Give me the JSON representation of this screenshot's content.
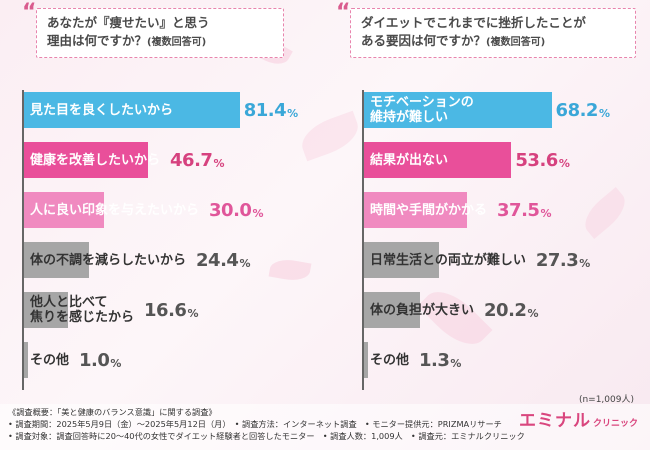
{
  "colors": {
    "rank1": "#4bb8e4",
    "rank2": "#e94f9a",
    "rank3": "#f08ac0",
    "other": "#a6a6a6",
    "rank1_text": "#3aa7d8",
    "rank2_text": "#d6427f",
    "rank3_text": "#e0569a",
    "other_text": "#555555"
  },
  "chart_data": [
    {
      "type": "bar",
      "orientation": "horizontal",
      "title": "あなたが『痩せたい』と思う理由は何ですか？(複数回答可)",
      "title_lines": [
        "あなたが『痩せたい』と思う",
        "理由は何ですか？"
      ],
      "title_suffix": "(複数回答可)",
      "categories": [
        "見た目を良くしたいから",
        "健康を改善したいから",
        "人に良い印象を与えたいから",
        "体の不調を減らしたいから",
        "他人と比べて焦りを感じたから",
        "その他"
      ],
      "category_lines": [
        [
          "見た目を良くしたいから"
        ],
        [
          "健康を改善したいから"
        ],
        [
          "人に良い印象を与えたいから"
        ],
        [
          "体の不調を減らしたいから"
        ],
        [
          "他人と比べて",
          "焦りを感じたから"
        ],
        [
          "その他"
        ]
      ],
      "values": [
        81.4,
        46.7,
        30.0,
        24.4,
        16.6,
        1.0
      ],
      "value_labels": [
        "81.4",
        "46.7",
        "30.0",
        "24.4",
        "16.6",
        "1.0"
      ],
      "unit": "%",
      "xlim": [
        0,
        100
      ]
    },
    {
      "type": "bar",
      "orientation": "horizontal",
      "title": "ダイエットでこれまでに挫折したことがある要因は何ですか？(複数回答可)",
      "title_lines": [
        "ダイエットでこれまでに挫折したことが",
        "ある要因は何ですか？"
      ],
      "title_suffix": "(複数回答可)",
      "categories": [
        "モチベーションの維持が難しい",
        "結果が出ない",
        "時間や手間がかかる",
        "日常生活との両立が難しい",
        "体の負担が大きい",
        "その他"
      ],
      "category_lines": [
        [
          "モチベーションの",
          "維持が難しい"
        ],
        [
          "結果が出ない"
        ],
        [
          "時間や手間がかかる"
        ],
        [
          "日常生活との両立が難しい"
        ],
        [
          "体の負担が大きい"
        ],
        [
          "その他"
        ]
      ],
      "values": [
        68.2,
        53.6,
        37.5,
        27.3,
        20.2,
        1.3
      ],
      "value_labels": [
        "68.2",
        "53.6",
        "37.5",
        "27.3",
        "20.2",
        "1.3"
      ],
      "unit": "%",
      "xlim": [
        0,
        100
      ],
      "note": "(n=1,009人)"
    }
  ],
  "footer": {
    "line1": "《調査概要：「美と健康のバランス意識」に関する調査》",
    "line2": "• 調査期間：2025年5月9日（金）～2025年5月12日（月）　• 調査方法：インターネット調査　• モニター提供元：PRIZMAリサーチ",
    "line3": "• 調査対象：調査回答時に20～40代の女性でダイエット経験者と回答したモニター　• 調査人数：1,009人　• 調査元：エミナルクリニック"
  },
  "brand": {
    "name": "エミナル",
    "sub": "クリニック"
  }
}
